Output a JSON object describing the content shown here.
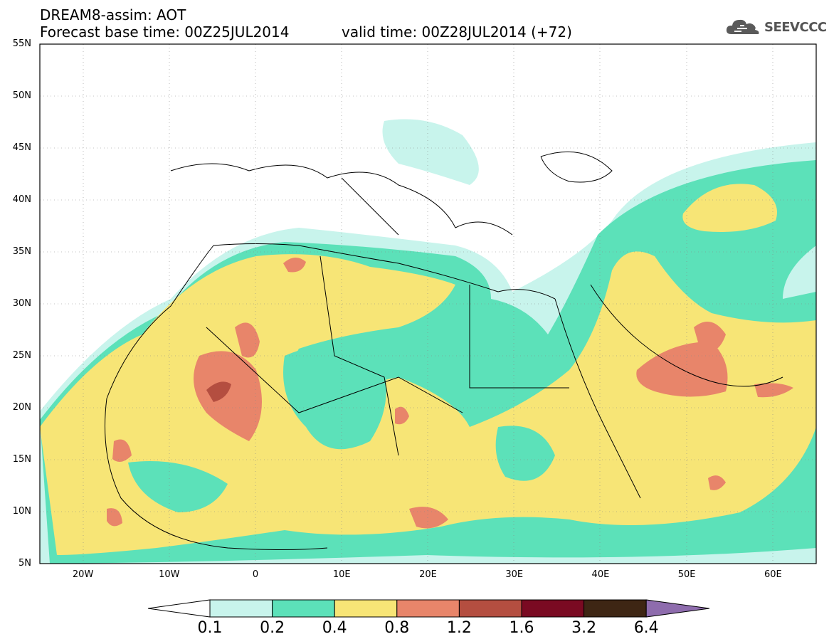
{
  "header": {
    "line1": "DREAM8-assim: AOT",
    "line2": "Forecast base time: 00Z25JUL2014",
    "valid": "valid time: 00Z28JUL2014 (+72)",
    "logo_text": "SEEVCCC",
    "logo_icon": "cloud-icon"
  },
  "map": {
    "lon_range": [
      -25,
      65
    ],
    "lat_range": [
      5,
      55
    ],
    "lat_labels": [
      "55N",
      "50N",
      "45N",
      "40N",
      "35N",
      "30N",
      "25N",
      "20N",
      "15N",
      "10N",
      "5N"
    ],
    "lat_values": [
      55,
      50,
      45,
      40,
      35,
      30,
      25,
      20,
      15,
      10,
      5
    ],
    "lon_labels": [
      "20W",
      "10W",
      "0",
      "10E",
      "20E",
      "30E",
      "40E",
      "50E",
      "60E"
    ],
    "lon_values": [
      -20,
      -10,
      0,
      10,
      20,
      30,
      40,
      50,
      60
    ]
  },
  "colorbar": {
    "labels": [
      "0.1",
      "0.2",
      "0.4",
      "0.8",
      "1.2",
      "1.6",
      "3.2",
      "6.4"
    ],
    "colors": [
      "#c8f4ec",
      "#5ce1b9",
      "#f7e576",
      "#e8856a",
      "#b44e40",
      "#7a0a22",
      "#3e2614",
      "#8e6cad"
    ]
  },
  "colors": {
    "c1": "#c8f4ec",
    "c2": "#5ce1b9",
    "c3": "#f7e576",
    "c4": "#e8856a",
    "c5": "#b44e40"
  }
}
